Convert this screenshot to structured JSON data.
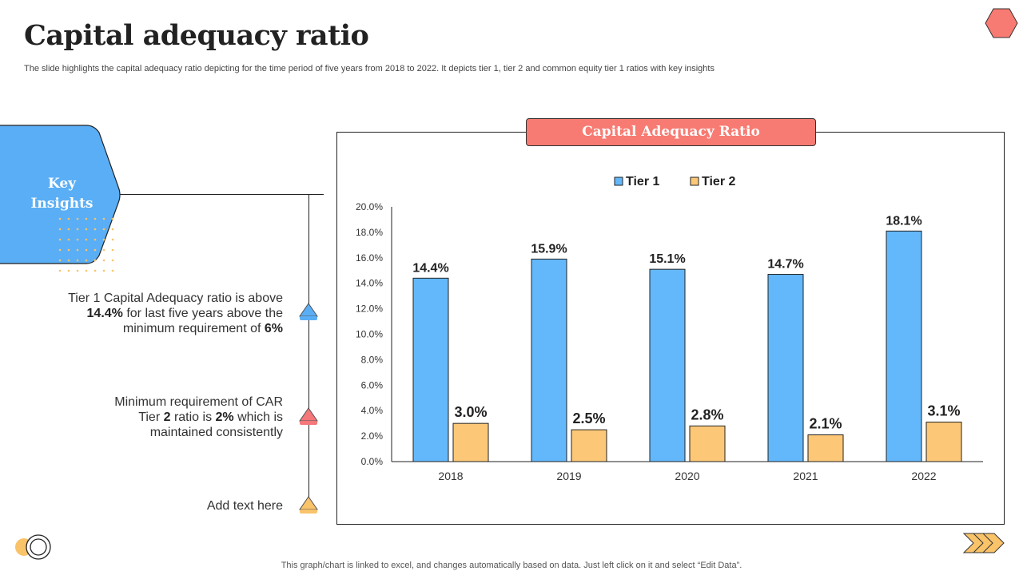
{
  "page": {
    "title": "Capital adequacy ratio",
    "subtitle": "The slide highlights the capital adequacy ratio depicting for the time period of five years from 2018 to 2022. It depicts tier 1, tier 2 and common equity tier 1 ratios with key insights",
    "footer": "This graph/chart is linked to excel,  and changes automatically based on data. Just left click on it and select “Edit Data”."
  },
  "insights": {
    "title_line1": "Key",
    "title_line2": "Insights",
    "items": [
      {
        "pre": "Tier 1 Capital Adequacy ratio is above",
        "bold1": "14.4%",
        "mid": " for last five years above the",
        "pre2": "minimum requirement of ",
        "bold2": "6%",
        "marker_color": "#5aaef5"
      },
      {
        "line1": "Minimum requirement of CAR",
        "pre": "Tier ",
        "bold1": "2",
        "mid": " ratio is ",
        "bold2": "2%",
        "post": " which is",
        "line3": "maintained consistently",
        "marker_color": "#f4777a"
      },
      {
        "text": "Add text here",
        "marker_color": "#f9c36a"
      }
    ]
  },
  "colors": {
    "accent_red": "#f77b72",
    "tier1": "#63b8fb",
    "tier2": "#fcc878",
    "key_hex": "#5aaef5"
  },
  "chart_data": {
    "type": "bar",
    "title": "Capital Adequacy Ratio",
    "categories": [
      "2018",
      "2019",
      "2020",
      "2021",
      "2022"
    ],
    "series": [
      {
        "name": "Tier 1",
        "values": [
          14.4,
          15.9,
          15.1,
          14.7,
          18.1
        ],
        "labels": [
          "14.4%",
          "15.9%",
          "15.1%",
          "14.7%",
          "18.1%"
        ]
      },
      {
        "name": "Tier 2",
        "values": [
          3.0,
          2.5,
          2.8,
          2.1,
          3.1
        ],
        "labels": [
          "3.0%",
          "2.5%",
          "2.8%",
          "2.1%",
          "3.1%"
        ]
      }
    ],
    "yticks": [
      "0.0%",
      "2.0%",
      "4.0%",
      "6.0%",
      "8.0%",
      "10.0%",
      "12.0%",
      "14.0%",
      "16.0%",
      "18.0%",
      "20.0%"
    ],
    "ylim": [
      0,
      20
    ],
    "legend": "top-center",
    "grid": false,
    "xlabel": "",
    "ylabel": ""
  }
}
